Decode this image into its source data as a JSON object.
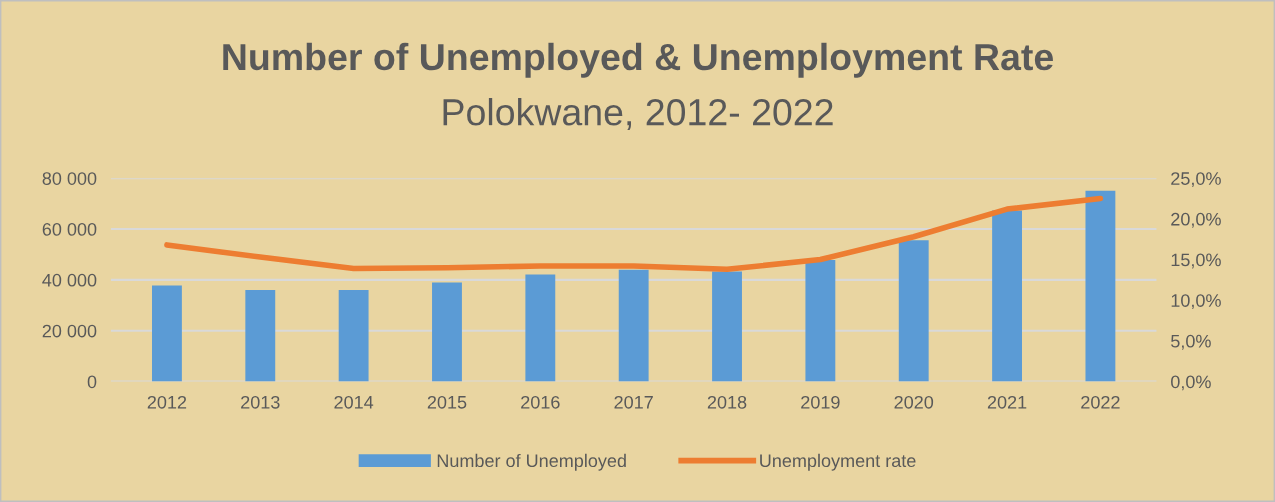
{
  "chart_data": {
    "type": "bar",
    "title": "Number of Unemployed & Unemployment Rate",
    "subtitle": "Polokwane, 2012- 2022",
    "categories": [
      "2012",
      "2013",
      "2014",
      "2015",
      "2016",
      "2017",
      "2018",
      "2019",
      "2020",
      "2021",
      "2022"
    ],
    "series": [
      {
        "name": "Number of Unemployed",
        "color": "#5b9bd5",
        "values": [
          37800,
          36000,
          36000,
          39000,
          42100,
          44000,
          43300,
          47800,
          55600,
          67300,
          75100
        ]
      },
      {
        "name": "Unemployment rate",
        "type": "line",
        "axis": "y2",
        "color": "#ed7d31",
        "marker": "none",
        "values": [
          16.8,
          15.3,
          13.9,
          14.0,
          14.2,
          14.2,
          13.8,
          15.0,
          17.8,
          21.2,
          22.5
        ]
      }
    ],
    "ylim": [
      0,
      80000
    ],
    "yticks": [
      {
        "value": 0,
        "label": "0"
      },
      {
        "value": 20000,
        "label": "20 000"
      },
      {
        "value": 40000,
        "label": "40 000"
      },
      {
        "value": 60000,
        "label": "60 000"
      },
      {
        "value": 80000,
        "label": "80 000"
      }
    ],
    "y2lim": [
      0,
      25
    ],
    "y2ticks": [
      {
        "value": 0,
        "label": "0,0%"
      },
      {
        "value": 5,
        "label": "5,0%"
      },
      {
        "value": 10,
        "label": "10,0%"
      },
      {
        "value": 15,
        "label": "15,0%"
      },
      {
        "value": 20,
        "label": "20,0%"
      },
      {
        "value": 25,
        "label": "25,0%"
      }
    ],
    "grid": "y",
    "legend": "bottom"
  }
}
